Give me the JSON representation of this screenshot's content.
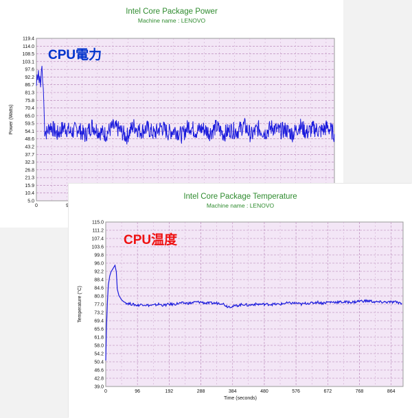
{
  "chart_data": [
    {
      "type": "line",
      "title": "Intel Core Package Power",
      "subtitle": "Machine name : LENOVO",
      "overlay_label": "CPU電力",
      "ylabel": "Power (Watts)",
      "xlabel": "",
      "ylim": [
        5.0,
        119.4
      ],
      "yticks": [
        "119.4",
        "114.0",
        "108.5",
        "103.1",
        "97.6",
        "92.2",
        "86.7",
        "81.3",
        "75.8",
        "70.4",
        "65.0",
        "59.5",
        "54.1",
        "48.6",
        "43.2",
        "37.7",
        "32.3",
        "26.8",
        "21.3",
        "15.9",
        "10.4",
        "5.0"
      ],
      "xticks_visible": [
        "0",
        "9"
      ],
      "series": [
        {
          "color": "#1a1adc",
          "x": [
            0,
            1,
            2,
            3,
            4,
            5,
            6,
            7,
            8,
            9,
            10,
            12,
            15,
            20,
            30,
            40,
            50,
            60,
            70,
            80,
            90,
            100,
            110,
            120,
            130,
            140,
            150,
            160,
            170,
            180,
            190,
            200,
            210,
            220,
            230,
            240,
            250,
            260,
            270,
            280,
            290,
            300,
            310,
            320,
            330,
            340,
            350,
            360,
            370,
            380,
            390,
            400,
            410,
            420,
            430
          ],
          "y": [
            86,
            94,
            90,
            97,
            88,
            93,
            85,
            96,
            100,
            89,
            84,
            55,
            53,
            58,
            52,
            57,
            53,
            56,
            51,
            58,
            54,
            52,
            57,
            55,
            50,
            58,
            54,
            56,
            52,
            57,
            53,
            55,
            51,
            58,
            54,
            56,
            53,
            57,
            52,
            55,
            54,
            58,
            51,
            56,
            53,
            57,
            54,
            55,
            52,
            58,
            53,
            56,
            54,
            57,
            52
          ]
        }
      ]
    },
    {
      "type": "line",
      "title": "Intel Core Package Temperature",
      "subtitle": "Machine name : LENOVO",
      "overlay_label": "CPU温度",
      "ylabel": "Temperature (°C)",
      "xlabel": "Time (seconds)",
      "ylim": [
        39.0,
        115.0
      ],
      "xlim": [
        0,
        900
      ],
      "yticks": [
        "115.0",
        "111.2",
        "107.4",
        "103.6",
        "99.8",
        "96.0",
        "92.2",
        "88.4",
        "84.6",
        "80.8",
        "77.0",
        "73.2",
        "69.4",
        "65.6",
        "61.8",
        "58.0",
        "54.2",
        "50.4",
        "46.6",
        "42.8",
        "39.0"
      ],
      "xticks": [
        "0",
        "96",
        "192",
        "288",
        "384",
        "480",
        "576",
        "672",
        "768",
        "864"
      ],
      "series": [
        {
          "color": "#1a1adc",
          "x": [
            0,
            2,
            5,
            8,
            12,
            16,
            20,
            24,
            28,
            32,
            35,
            40,
            48,
            56,
            64,
            80,
            96,
            112,
            128,
            144,
            160,
            176,
            192,
            208,
            224,
            240,
            256,
            272,
            288,
            304,
            320,
            336,
            352,
            368,
            384,
            400,
            416,
            432,
            448,
            464,
            480,
            496,
            512,
            528,
            544,
            560,
            576,
            592,
            608,
            624,
            640,
            656,
            672,
            688,
            704,
            720,
            736,
            752,
            768,
            784,
            800,
            816,
            832,
            848,
            864,
            880,
            896
          ],
          "y": [
            51,
            66,
            78,
            86,
            90,
            92,
            93,
            94,
            95,
            92,
            84,
            81,
            79,
            78,
            77.5,
            77,
            76.5,
            77,
            76.5,
            76.5,
            77,
            76.5,
            77,
            77,
            77.5,
            77.5,
            77.5,
            78,
            78,
            77.5,
            77.5,
            77.5,
            77.5,
            76,
            76,
            76.5,
            77,
            76.5,
            77,
            77,
            77,
            77,
            77,
            77,
            77.5,
            77.5,
            77.5,
            77,
            77.5,
            77.5,
            78,
            77.5,
            78,
            78,
            78,
            78,
            78,
            78,
            78.5,
            78.5,
            78.5,
            78,
            78,
            78,
            78,
            78,
            77.5
          ]
        }
      ]
    }
  ]
}
